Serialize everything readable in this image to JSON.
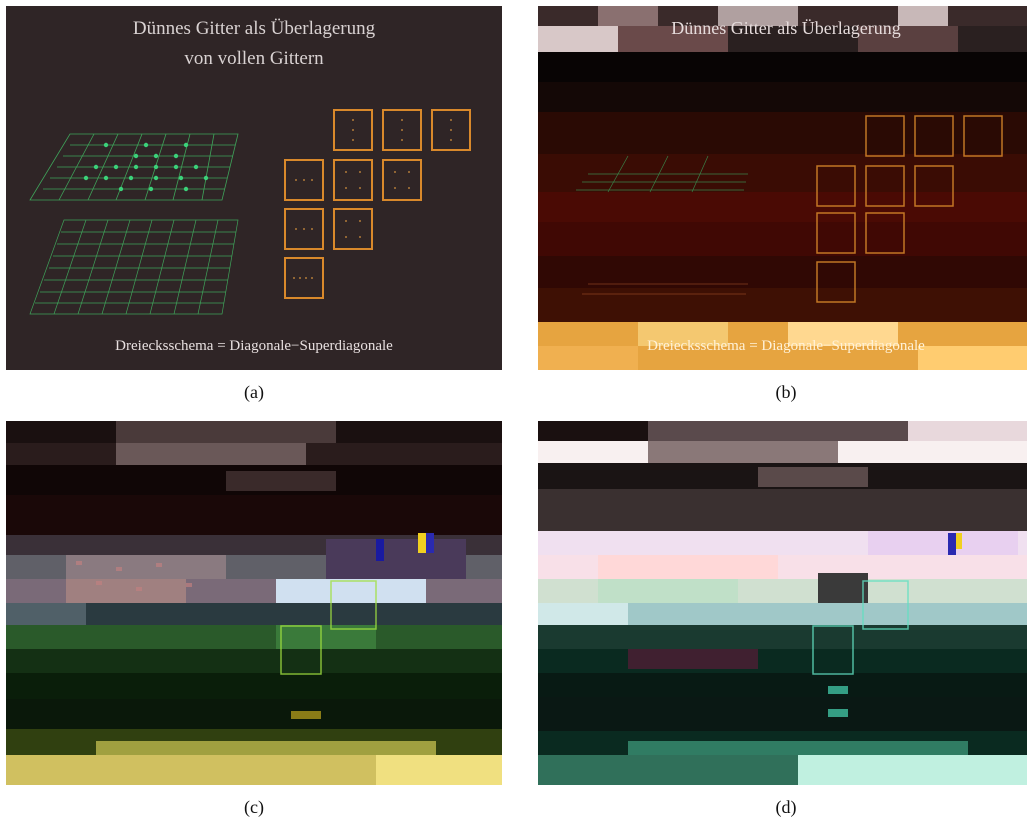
{
  "panels": {
    "a": {
      "caption": "(a)",
      "title_line1": "Dünnes Gitter als Überlagerung",
      "title_line2": "von vollen Gittern",
      "bottom_text": "Dreiecksschema = Diagonale−Superdiagonale"
    },
    "b": {
      "caption": "(b)",
      "title_line1": "Dünnes Gitter als Überlagerung",
      "bottom_text": "Dreiecksschema = Diagonale−Superdiagonale"
    },
    "c": {
      "caption": "(c)"
    },
    "d": {
      "caption": "(d)"
    }
  },
  "colors": {
    "slide_bg": "#2f2526",
    "grid_green": "#3fa35a",
    "dot_green": "#3bd27a",
    "box_orange": "#d9892b"
  }
}
